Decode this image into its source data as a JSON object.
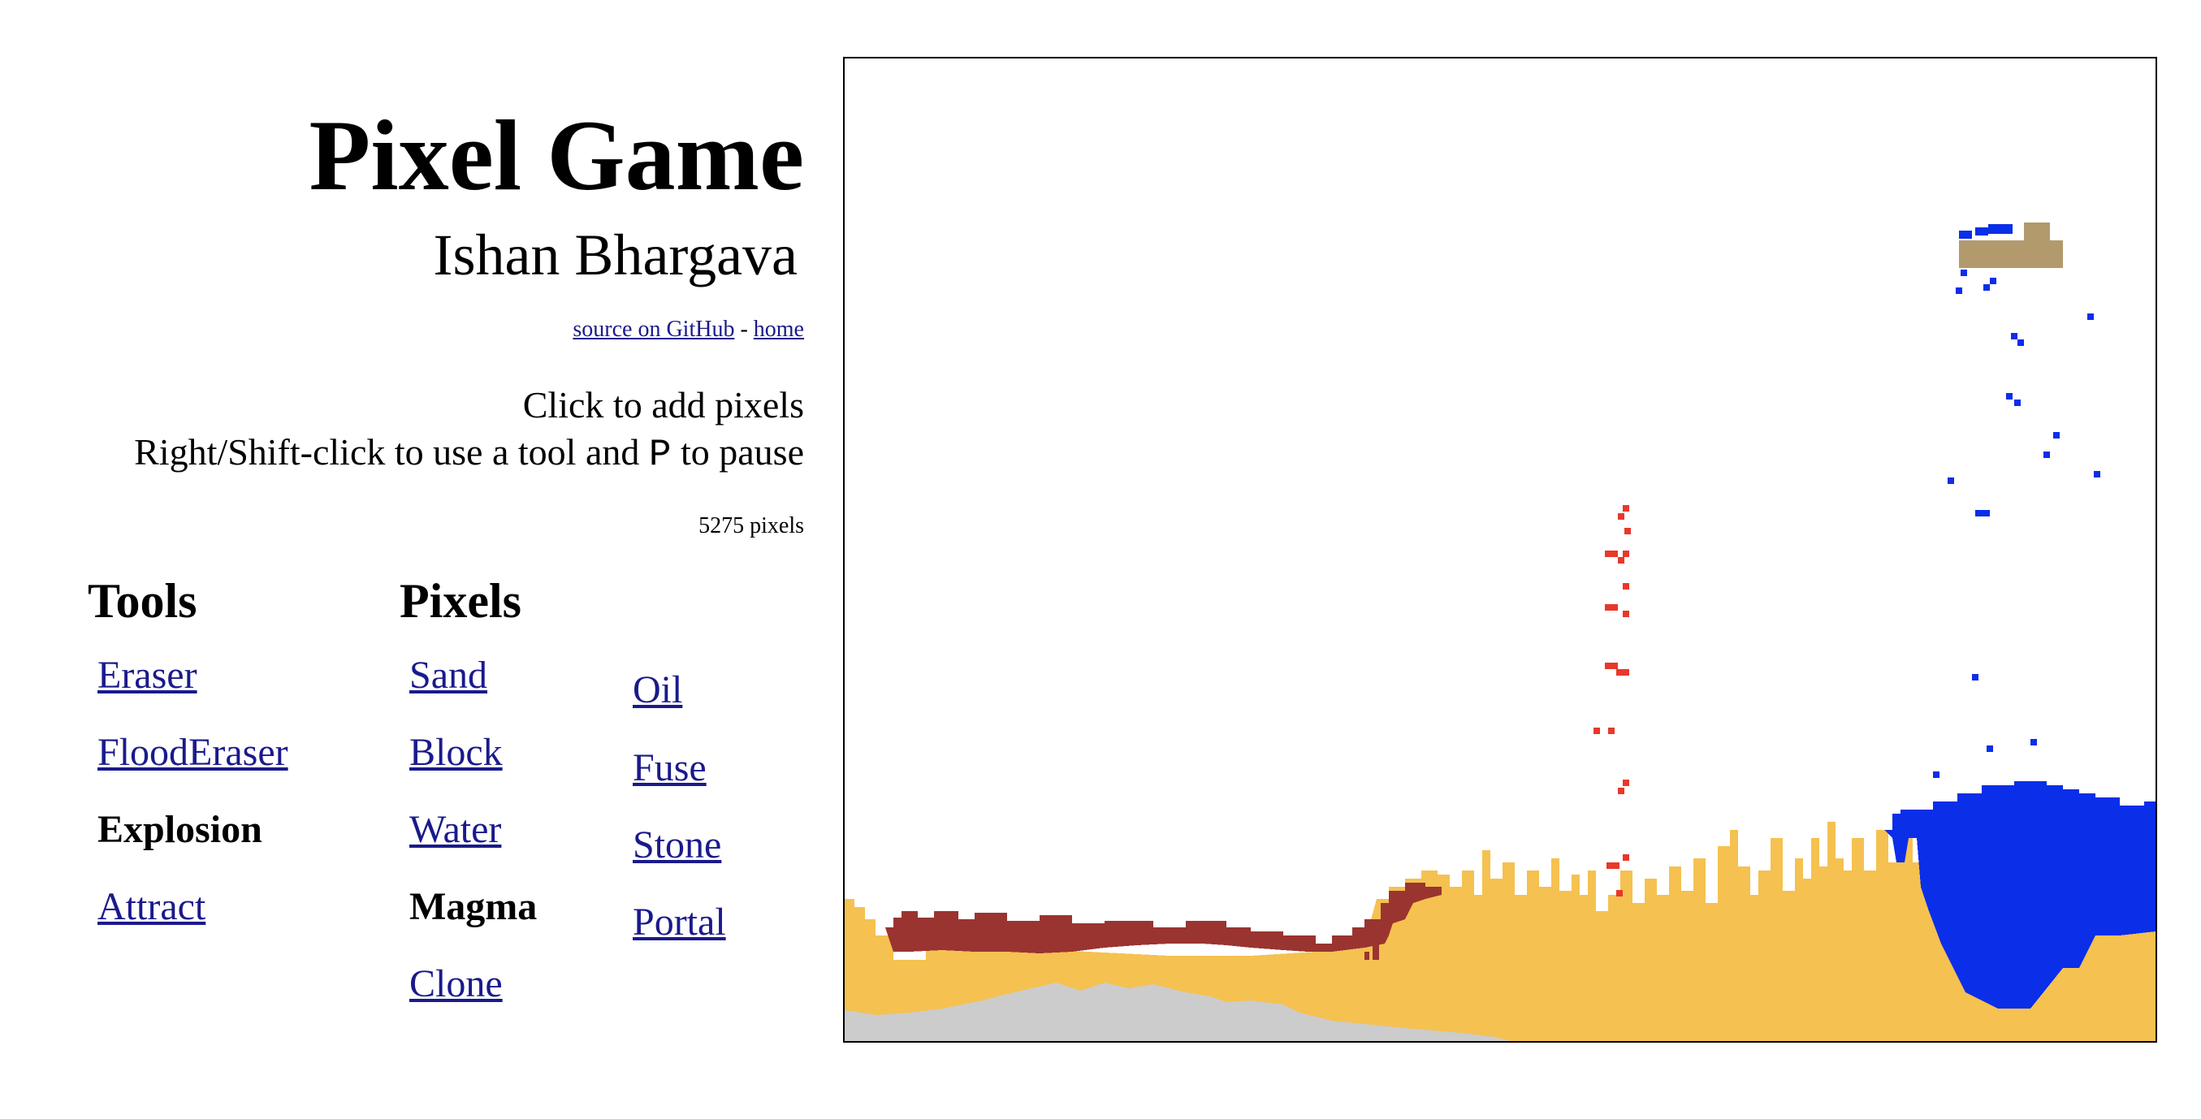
{
  "header": {
    "title": "Pixel Game",
    "author": "Ishan Bhargava",
    "source_link": "source on GitHub",
    "separator": "-",
    "home_link": "home"
  },
  "instructions": {
    "line1": "Click to add pixels",
    "line2_prefix": "Right/Shift-click to use a tool and ",
    "line2_key": "P",
    "line2_suffix": " to pause"
  },
  "pixel_count": "5275 pixels",
  "tools": {
    "heading": "Tools",
    "items": [
      {
        "label": "Eraser",
        "active": false
      },
      {
        "label": "FloodEraser",
        "active": false
      },
      {
        "label": "Explosion",
        "active": true
      },
      {
        "label": "Attract",
        "active": false
      }
    ]
  },
  "pixels": {
    "heading": "Pixels",
    "items": [
      {
        "label": "Sand",
        "active": false
      },
      {
        "label": "Block",
        "active": false
      },
      {
        "label": "Water",
        "active": false
      },
      {
        "label": "Magma",
        "active": true
      },
      {
        "label": "Clone",
        "active": false
      },
      {
        "label": "Oil",
        "active": false
      },
      {
        "label": "Fuse",
        "active": false
      },
      {
        "label": "Stone",
        "active": false
      },
      {
        "label": "Portal",
        "active": false
      }
    ]
  },
  "colors": {
    "sand": "#f5c150",
    "stone": "#cccccc",
    "magma": "#9a3430",
    "water": "#0b2ee8",
    "fire": "#e8382a",
    "block": "#b29a6c"
  }
}
